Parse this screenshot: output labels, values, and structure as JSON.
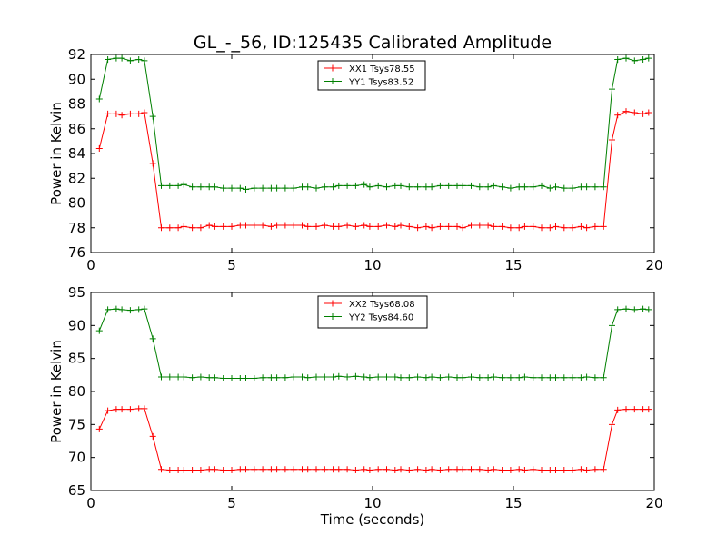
{
  "chart_data": {
    "title": "GL_-_56, ID:125435 Calibrated Amplitude",
    "xlabel": "Time (seconds)",
    "panels": [
      {
        "type": "line",
        "ylabel": "Power in Kelvin",
        "xlim": [
          0,
          20
        ],
        "ylim": [
          76,
          92
        ],
        "xticks": [
          0,
          5,
          10,
          15,
          20
        ],
        "yticks": [
          76,
          78,
          80,
          82,
          84,
          86,
          88,
          90,
          92
        ],
        "grid": false,
        "legend_position": "top-center",
        "x": [
          0.3,
          0.6,
          0.9,
          1.1,
          1.4,
          1.7,
          1.9,
          2.2,
          2.5,
          2.8,
          3.1,
          3.3,
          3.6,
          3.9,
          4.2,
          4.4,
          4.7,
          5.0,
          5.3,
          5.5,
          5.8,
          6.1,
          6.4,
          6.6,
          6.9,
          7.2,
          7.5,
          7.7,
          8.0,
          8.3,
          8.6,
          8.8,
          9.1,
          9.4,
          9.7,
          9.9,
          10.2,
          10.5,
          10.8,
          11.0,
          11.3,
          11.6,
          11.9,
          12.1,
          12.4,
          12.7,
          13.0,
          13.2,
          13.5,
          13.8,
          14.1,
          14.3,
          14.6,
          14.9,
          15.2,
          15.4,
          15.7,
          16.0,
          16.3,
          16.5,
          16.8,
          17.1,
          17.4,
          17.6,
          17.9,
          18.2,
          18.5,
          18.7,
          19.0,
          19.3,
          19.6,
          19.8
        ],
        "series": [
          {
            "name": "XX1 Tsys78.55",
            "color": "#ff0000",
            "values": [
              84.4,
              87.2,
              87.2,
              87.1,
              87.2,
              87.2,
              87.3,
              83.2,
              78.0,
              78.0,
              78.0,
              78.1,
              78.0,
              78.0,
              78.2,
              78.1,
              78.1,
              78.1,
              78.2,
              78.2,
              78.2,
              78.2,
              78.1,
              78.2,
              78.2,
              78.2,
              78.2,
              78.1,
              78.1,
              78.2,
              78.1,
              78.1,
              78.2,
              78.1,
              78.2,
              78.1,
              78.1,
              78.2,
              78.1,
              78.2,
              78.1,
              78.0,
              78.1,
              78.0,
              78.1,
              78.1,
              78.1,
              78.0,
              78.2,
              78.2,
              78.2,
              78.1,
              78.1,
              78.0,
              78.0,
              78.1,
              78.1,
              78.0,
              78.0,
              78.1,
              78.0,
              78.0,
              78.1,
              78.0,
              78.1,
              78.1,
              85.1,
              87.1,
              87.4,
              87.3,
              87.2,
              87.3
            ]
          },
          {
            "name": "YY1 Tsys83.52",
            "color": "#008000",
            "values": [
              88.4,
              91.6,
              91.7,
              91.7,
              91.5,
              91.6,
              91.5,
              87.0,
              81.4,
              81.4,
              81.4,
              81.5,
              81.3,
              81.3,
              81.3,
              81.3,
              81.2,
              81.2,
              81.2,
              81.1,
              81.2,
              81.2,
              81.2,
              81.2,
              81.2,
              81.2,
              81.3,
              81.3,
              81.2,
              81.3,
              81.3,
              81.4,
              81.4,
              81.4,
              81.5,
              81.3,
              81.4,
              81.3,
              81.4,
              81.4,
              81.3,
              81.3,
              81.3,
              81.3,
              81.4,
              81.4,
              81.4,
              81.4,
              81.4,
              81.3,
              81.3,
              81.4,
              81.3,
              81.2,
              81.3,
              81.3,
              81.3,
              81.4,
              81.2,
              81.3,
              81.2,
              81.2,
              81.3,
              81.3,
              81.3,
              81.3,
              89.2,
              91.6,
              91.7,
              91.5,
              91.6,
              91.7
            ]
          }
        ]
      },
      {
        "type": "line",
        "ylabel": "Power in Kelvin",
        "xlim": [
          0,
          20
        ],
        "ylim": [
          65,
          95
        ],
        "xticks": [
          0,
          5,
          10,
          15,
          20
        ],
        "yticks": [
          65,
          70,
          75,
          80,
          85,
          90,
          95
        ],
        "grid": false,
        "legend_position": "top-center",
        "x": [
          0.3,
          0.6,
          0.9,
          1.1,
          1.4,
          1.7,
          1.9,
          2.2,
          2.5,
          2.8,
          3.1,
          3.3,
          3.6,
          3.9,
          4.2,
          4.4,
          4.7,
          5.0,
          5.3,
          5.5,
          5.8,
          6.1,
          6.4,
          6.6,
          6.9,
          7.2,
          7.5,
          7.7,
          8.0,
          8.3,
          8.6,
          8.8,
          9.1,
          9.4,
          9.7,
          9.9,
          10.2,
          10.5,
          10.8,
          11.0,
          11.3,
          11.6,
          11.9,
          12.1,
          12.4,
          12.7,
          13.0,
          13.2,
          13.5,
          13.8,
          14.1,
          14.3,
          14.6,
          14.9,
          15.2,
          15.4,
          15.7,
          16.0,
          16.3,
          16.5,
          16.8,
          17.1,
          17.4,
          17.6,
          17.9,
          18.2,
          18.5,
          18.7,
          19.0,
          19.3,
          19.6,
          19.8
        ],
        "series": [
          {
            "name": "XX2 Tsys68.08",
            "color": "#ff0000",
            "values": [
              74.3,
              77.1,
              77.3,
              77.3,
              77.3,
              77.4,
              77.4,
              73.2,
              68.2,
              68.1,
              68.1,
              68.1,
              68.1,
              68.1,
              68.2,
              68.2,
              68.1,
              68.1,
              68.2,
              68.2,
              68.2,
              68.2,
              68.2,
              68.2,
              68.2,
              68.2,
              68.2,
              68.2,
              68.2,
              68.2,
              68.2,
              68.2,
              68.2,
              68.1,
              68.2,
              68.1,
              68.2,
              68.2,
              68.1,
              68.2,
              68.1,
              68.2,
              68.1,
              68.2,
              68.1,
              68.2,
              68.2,
              68.2,
              68.2,
              68.2,
              68.1,
              68.2,
              68.1,
              68.1,
              68.2,
              68.1,
              68.2,
              68.1,
              68.1,
              68.1,
              68.1,
              68.1,
              68.2,
              68.1,
              68.2,
              68.2,
              75.0,
              77.2,
              77.3,
              77.3,
              77.3,
              77.3
            ]
          },
          {
            "name": "YY2 Tsys84.60",
            "color": "#008000",
            "values": [
              89.2,
              92.4,
              92.5,
              92.4,
              92.3,
              92.4,
              92.5,
              88.0,
              82.2,
              82.2,
              82.2,
              82.2,
              82.1,
              82.2,
              82.1,
              82.1,
              82.0,
              82.0,
              82.0,
              82.0,
              82.0,
              82.1,
              82.1,
              82.1,
              82.1,
              82.2,
              82.2,
              82.1,
              82.2,
              82.2,
              82.2,
              82.3,
              82.2,
              82.3,
              82.2,
              82.1,
              82.2,
              82.2,
              82.2,
              82.1,
              82.1,
              82.2,
              82.1,
              82.2,
              82.1,
              82.2,
              82.1,
              82.1,
              82.2,
              82.1,
              82.1,
              82.2,
              82.1,
              82.1,
              82.1,
              82.2,
              82.1,
              82.1,
              82.1,
              82.1,
              82.1,
              82.1,
              82.1,
              82.2,
              82.1,
              82.1,
              90.0,
              92.4,
              92.5,
              92.4,
              92.5,
              92.4
            ]
          }
        ]
      }
    ]
  }
}
